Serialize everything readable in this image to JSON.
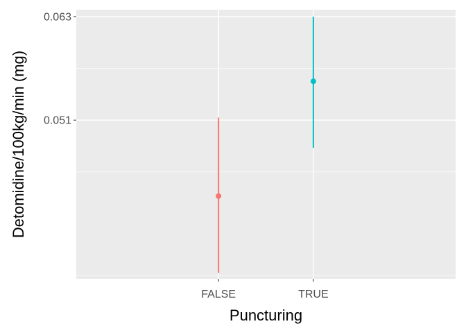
{
  "chart_data": {
    "type": "errorbar",
    "title": "",
    "xlabel": "Puncturing",
    "ylabel": "Detomidine/100kg/min (mg)",
    "categories": [
      "FALSE",
      "TRUE"
    ],
    "series": [
      {
        "category": "FALSE",
        "mean": 0.0422,
        "lower": 0.0333,
        "upper": 0.0513,
        "color": "#F8766D"
      },
      {
        "category": "TRUE",
        "mean": 0.0555,
        "lower": 0.0478,
        "upper": 0.063,
        "color": "#00BFC4"
      }
    ],
    "yticks": [
      0.051,
      0.063
    ],
    "yticklabels": [
      "0.051",
      "0.063"
    ],
    "ylim": [
      0.0326,
      0.0638
    ],
    "grid": true,
    "panel_background": "#EBEBEB",
    "gridline_color": "#FFFFFF"
  }
}
